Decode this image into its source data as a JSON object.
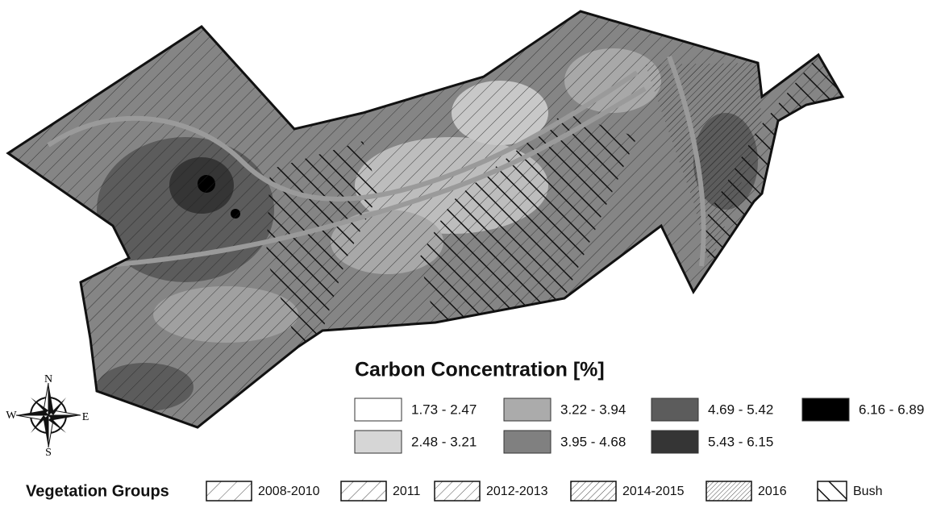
{
  "legend": {
    "title": "Carbon Concentration [%]",
    "classes": [
      {
        "label": "1.73 - 2.47",
        "color": "#ffffff"
      },
      {
        "label": "2.48 - 3.21",
        "color": "#d6d6d6"
      },
      {
        "label": "3.22 - 3.94",
        "color": "#ababab"
      },
      {
        "label": "3.95 - 4.68",
        "color": "#808080"
      },
      {
        "label": "4.69 - 5.42",
        "color": "#5c5c5c"
      },
      {
        "label": "5.43 - 6.15",
        "color": "#353535"
      },
      {
        "label": "6.16 - 6.89",
        "color": "#000000"
      }
    ]
  },
  "vegetation": {
    "title": "Vegetation Groups",
    "groups": [
      "2008-2010",
      "2011",
      "2012-2013",
      "2014-2015",
      "2016",
      "Bush"
    ]
  },
  "compass": {
    "n": "N",
    "e": "E",
    "s": "S",
    "w": "W"
  }
}
